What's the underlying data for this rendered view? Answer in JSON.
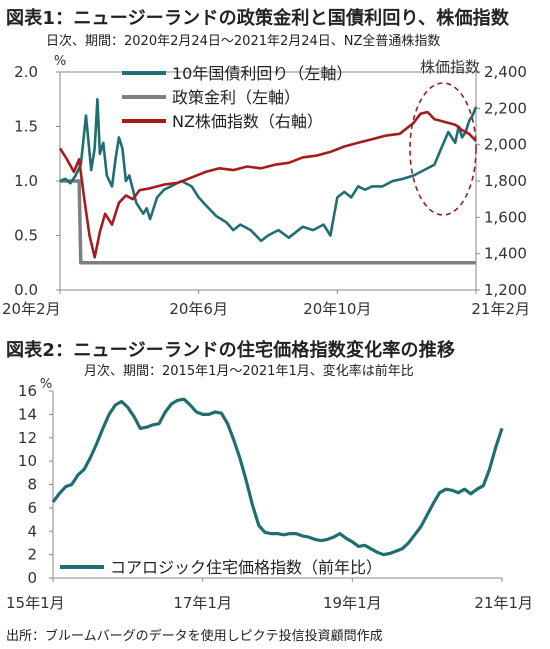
{
  "chart_data": [
    {
      "type": "line",
      "title": "図表1：ニュージーランドの政策金利と国債利回り、株価指数",
      "subtitle": "日次、期間：2020年2月24日～2021年2月24日、NZ全普通株指数",
      "left_unit_label": "%",
      "right_unit_label": "株価指数",
      "x_tick_labels": [
        "20年2月",
        "20年6月",
        "20年10月",
        "21年2月"
      ],
      "x_ticks": [
        0,
        4,
        8,
        12
      ],
      "xlim": [
        0,
        12
      ],
      "ylim_left": [
        0.0,
        2.0
      ],
      "y_ticks_left": [
        "0.0",
        "0.5",
        "1.0",
        "1.5",
        "2.0"
      ],
      "ylim_right": [
        1200,
        2400
      ],
      "y_ticks_right": [
        "1,200",
        "1,400",
        "1,600",
        "1,800",
        "2,000",
        "2,200",
        "2,400"
      ],
      "legend_position": "top-left",
      "grid": false,
      "series": [
        {
          "name": "10年国債利回り（左軸）",
          "axis": "left",
          "color": "#1f6e72",
          "x": [
            0,
            0.15,
            0.3,
            0.45,
            0.6,
            0.75,
            0.9,
            1.0,
            1.08,
            1.15,
            1.25,
            1.35,
            1.5,
            1.6,
            1.7,
            1.8,
            1.9,
            2.0,
            2.2,
            2.4,
            2.5,
            2.6,
            2.8,
            3.0,
            3.2,
            3.5,
            3.8,
            4.0,
            4.2,
            4.5,
            4.8,
            5.0,
            5.2,
            5.5,
            5.8,
            6.0,
            6.3,
            6.6,
            7.0,
            7.3,
            7.6,
            7.8,
            8.0,
            8.2,
            8.4,
            8.6,
            8.8,
            9.0,
            9.3,
            9.6,
            9.9,
            10.2,
            10.5,
            10.8,
            11.0,
            11.2,
            11.4,
            11.5,
            11.6,
            11.7,
            11.8,
            11.9,
            12.0
          ],
          "values": [
            1.0,
            1.02,
            0.98,
            1.05,
            1.15,
            1.6,
            1.1,
            1.3,
            1.75,
            1.25,
            1.35,
            1.05,
            0.95,
            1.2,
            1.4,
            1.3,
            1.0,
            1.05,
            0.8,
            0.7,
            0.75,
            0.65,
            0.85,
            0.92,
            0.95,
            1.0,
            0.95,
            0.85,
            0.78,
            0.68,
            0.62,
            0.55,
            0.6,
            0.55,
            0.45,
            0.5,
            0.55,
            0.48,
            0.58,
            0.55,
            0.6,
            0.5,
            0.85,
            0.9,
            0.85,
            0.95,
            0.92,
            0.95,
            0.95,
            1.0,
            1.02,
            1.05,
            1.1,
            1.15,
            1.3,
            1.45,
            1.35,
            1.5,
            1.4,
            1.45,
            1.55,
            1.6,
            1.68
          ]
        },
        {
          "name": "政策金利（左軸）",
          "axis": "left",
          "color": "#7f7f7f",
          "x": [
            0,
            0.55,
            0.6,
            12.0
          ],
          "values": [
            1.0,
            1.0,
            0.25,
            0.25
          ]
        },
        {
          "name": "NZ株価指数（右軸）",
          "axis": "right",
          "color": "#a61c1c",
          "x": [
            0,
            0.2,
            0.4,
            0.55,
            0.7,
            0.85,
            1.0,
            1.15,
            1.3,
            1.5,
            1.7,
            1.9,
            2.1,
            2.3,
            2.6,
            3.0,
            3.4,
            3.8,
            4.2,
            4.6,
            5.0,
            5.4,
            5.8,
            6.2,
            6.6,
            7.0,
            7.4,
            7.8,
            8.2,
            8.6,
            9.0,
            9.4,
            9.8,
            10.2,
            10.4,
            10.6,
            10.8,
            11.0,
            11.2,
            11.4,
            11.6,
            11.8,
            12.0
          ],
          "values": [
            1980,
            1920,
            1850,
            1920,
            1700,
            1500,
            1380,
            1520,
            1620,
            1560,
            1680,
            1720,
            1700,
            1750,
            1760,
            1780,
            1790,
            1820,
            1850,
            1870,
            1860,
            1880,
            1870,
            1890,
            1900,
            1930,
            1940,
            1960,
            1990,
            2010,
            2030,
            2050,
            2060,
            2120,
            2170,
            2180,
            2140,
            2130,
            2120,
            2110,
            2080,
            2060,
            2020
          ]
        }
      ]
    },
    {
      "type": "line",
      "title": "図表2：ニュージーランドの住宅価格指数変化率の推移",
      "subtitle": "月次、期間：2015年1月～2021年1月、変化率は前年比",
      "left_unit_label": "%",
      "x_tick_labels": [
        "15年1月",
        "17年1月",
        "19年1月",
        "21年1月"
      ],
      "x_ticks": [
        0,
        24,
        48,
        72
      ],
      "xlim": [
        0,
        72
      ],
      "ylim": [
        0,
        16
      ],
      "y_ticks": [
        "0",
        "2",
        "4",
        "6",
        "8",
        "10",
        "12",
        "14",
        "16"
      ],
      "legend_position": "bottom-left",
      "grid": false,
      "series": [
        {
          "name": "コアロジック住宅価格指数（前年比）",
          "color": "#1f6e72",
          "x": [
            0,
            1,
            2,
            3,
            4,
            5,
            6,
            7,
            8,
            9,
            10,
            11,
            12,
            13,
            14,
            15,
            16,
            17,
            18,
            19,
            20,
            21,
            22,
            23,
            24,
            25,
            26,
            27,
            28,
            29,
            30,
            31,
            32,
            33,
            34,
            35,
            36,
            37,
            38,
            39,
            40,
            41,
            42,
            43,
            44,
            45,
            46,
            47,
            48,
            49,
            50,
            51,
            52,
            53,
            54,
            55,
            56,
            57,
            58,
            59,
            60,
            61,
            62,
            63,
            64,
            65,
            66,
            67,
            68,
            69,
            70,
            71,
            72
          ],
          "values": [
            6.5,
            7.2,
            7.8,
            8.0,
            8.8,
            9.3,
            10.3,
            11.5,
            12.8,
            14.0,
            14.8,
            15.1,
            14.6,
            13.8,
            12.8,
            12.9,
            13.1,
            13.2,
            14.2,
            14.9,
            15.2,
            15.3,
            14.8,
            14.2,
            14.0,
            14.0,
            14.2,
            14.1,
            13.2,
            11.8,
            10.2,
            8.3,
            6.2,
            4.5,
            3.9,
            3.8,
            3.8,
            3.7,
            3.8,
            3.8,
            3.6,
            3.5,
            3.3,
            3.2,
            3.3,
            3.5,
            3.8,
            3.4,
            3.1,
            2.7,
            2.8,
            2.5,
            2.2,
            2.0,
            2.1,
            2.3,
            2.5,
            3.0,
            3.7,
            4.4,
            5.4,
            6.4,
            7.3,
            7.6,
            7.5,
            7.3,
            7.6,
            7.2,
            7.6,
            7.9,
            9.3,
            11.2,
            12.8
          ]
        }
      ]
    }
  ],
  "source_note": "出所：ブルームバーグのデータを使用しピクテ投信投資顧問作成"
}
